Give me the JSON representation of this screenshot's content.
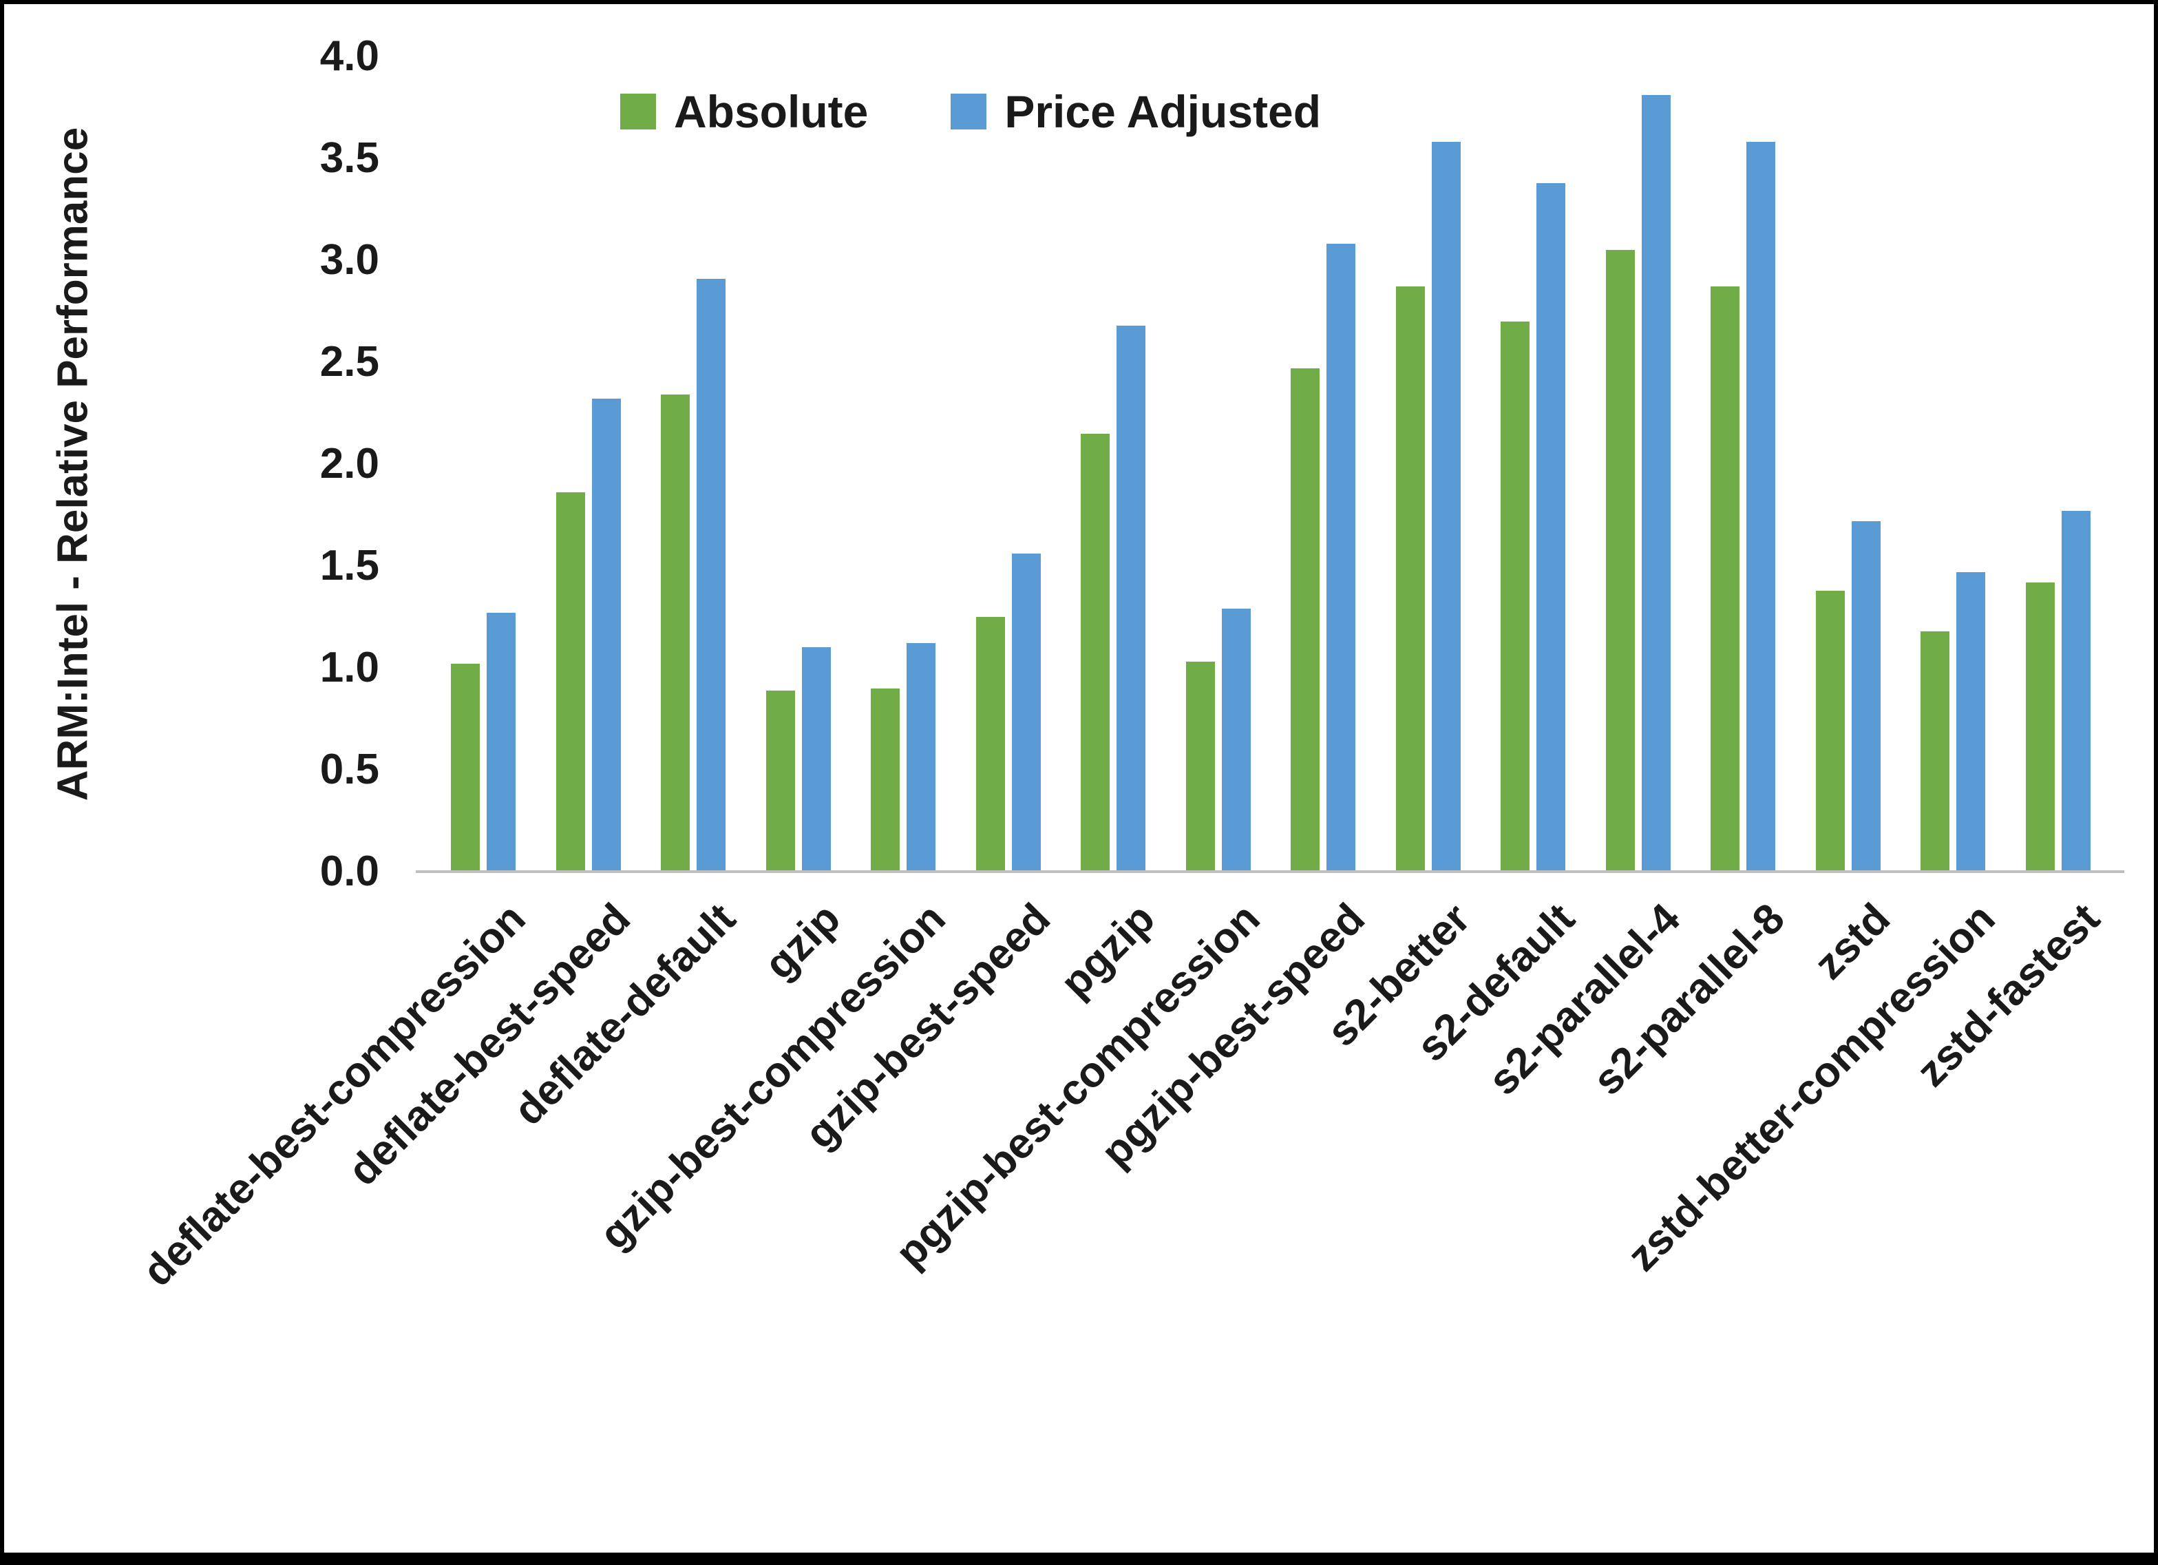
{
  "chart_data": {
    "type": "bar",
    "title": "",
    "xlabel": "",
    "ylabel": "ARM:Intel - Relative Performance",
    "ylim": [
      0.0,
      4.0
    ],
    "ytick_step": 0.5,
    "yticks": [
      0.0,
      0.5,
      1.0,
      1.5,
      2.0,
      2.5,
      3.0,
      3.5,
      4.0
    ],
    "ytick_labels": [
      "0.0",
      "0.5",
      "1.0",
      "1.5",
      "2.0",
      "2.5",
      "3.0",
      "3.5",
      "4.0"
    ],
    "grid": false,
    "legend_position": "top-center",
    "axis_line_color": "#BFBFBF",
    "categories": [
      "deflate-best-compression",
      "deflate-best-speed",
      "deflate-default",
      "gzip",
      "gzip-best-compression",
      "gzip-best-speed",
      "pgzip",
      "pgzip-best-compression",
      "pgzip-best-speed",
      "s2-better",
      "s2-default",
      "s2-parallel-4",
      "s2-parallel-8",
      "zstd",
      "zstd-better-compression",
      "zstd-fastest"
    ],
    "series": [
      {
        "name": "Absolute",
        "color": "#70AD47",
        "values": [
          1.02,
          1.86,
          2.34,
          0.89,
          0.9,
          1.25,
          2.15,
          1.03,
          2.47,
          2.87,
          2.7,
          3.05,
          2.87,
          1.38,
          1.18,
          1.42
        ]
      },
      {
        "name": "Price Adjusted",
        "color": "#5B9BD5",
        "values": [
          1.27,
          2.32,
          2.91,
          1.1,
          1.12,
          1.56,
          2.68,
          1.29,
          3.08,
          3.58,
          3.38,
          3.81,
          3.58,
          1.72,
          1.47,
          1.77
        ]
      }
    ]
  }
}
